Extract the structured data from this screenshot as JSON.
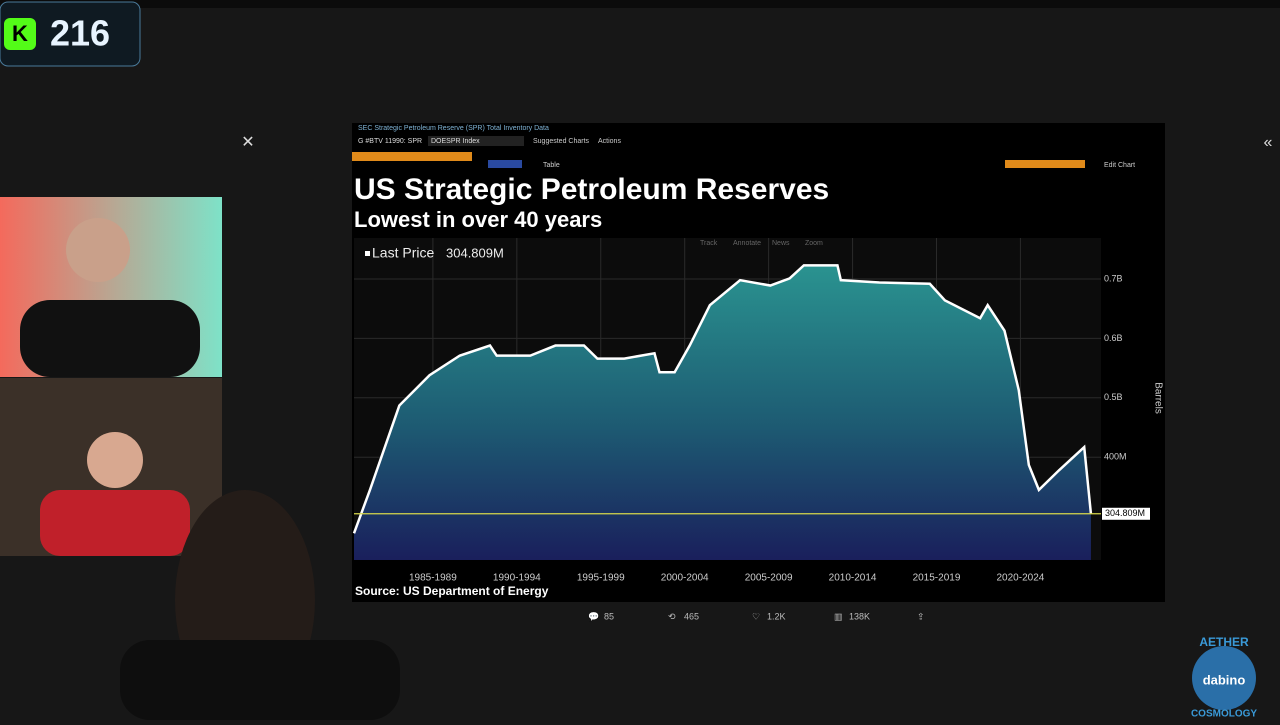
{
  "overlay": {
    "counter_badge": "K",
    "counter": "216",
    "watermark_top": "AETHER",
    "watermark_bottom": "COSMOLOGY",
    "watermark_logo": "dabino"
  },
  "terminal": {
    "header": "SEC Strategic Petroleum Reserve (SPR) Total Inventory Data",
    "ticker": "G #BTV 11990: SPR",
    "security": "DOESPR Index",
    "menu": [
      "Suggested Charts",
      "Actions"
    ],
    "table_button": "Table",
    "tools": [
      "Track",
      "Annotate",
      "News",
      "Zoom"
    ],
    "edit": "Edit Chart"
  },
  "chart_data": {
    "type": "area",
    "title": "US Strategic Petroleum Reserves",
    "subtitle": "Lowest in over 40 years",
    "y_label": "Barrels",
    "source": "Source: US Department of Energy",
    "x": [
      1982.8,
      1983.75,
      1985.5,
      1987.3,
      1989.1,
      1990.9,
      1991.3,
      1993.3,
      1994.8,
      1996.5,
      1997.3,
      1998.9,
      2000.7,
      2001.0,
      2001.9,
      2002.8,
      2004.0,
      2005.8,
      2007.6,
      2008.75,
      2009.6,
      2011.6,
      2011.8,
      2014.1,
      2017.1,
      2018.0,
      2020.1,
      2020.55,
      2021.55,
      2022.4,
      2023.0,
      2023.6,
      2024.8,
      2026.3,
      2026.7
    ],
    "series": [
      {
        "name": "Last Price",
        "color": "#ffffff",
        "values": [
          272000000,
          345000000,
          487000000,
          538000000,
          571000000,
          588000000,
          571000000,
          571000000,
          588000000,
          588000000,
          566000000,
          566000000,
          575000000,
          543000000,
          543000000,
          588000000,
          656000000,
          698000000,
          689000000,
          701000000,
          723000000,
          723000000,
          698000000,
          694000000,
          692000000,
          664000000,
          634000000,
          656000000,
          613000000,
          513000000,
          387000000,
          345000000,
          378000000,
          417000000,
          304809000
        ]
      }
    ],
    "last_price": {
      "value": 304809000,
      "label": "304.809M"
    },
    "xlim": [
      1982.8,
      2027.3
    ],
    "ylim": [
      227000000,
      769000000
    ],
    "xticks": [
      {
        "value": 1987.5,
        "label": "1985-1989"
      },
      {
        "value": 1992.5,
        "label": "1990-1994"
      },
      {
        "value": 1997.5,
        "label": "1995-1999"
      },
      {
        "value": 2002.5,
        "label": "2000-2004"
      },
      {
        "value": 2007.5,
        "label": "2005-2009"
      },
      {
        "value": 2012.5,
        "label": "2010-2014"
      },
      {
        "value": 2017.5,
        "label": "2015-2019"
      },
      {
        "value": 2022.5,
        "label": "2020-2024"
      }
    ],
    "yticks": [
      {
        "value": 700000000,
        "label": "0.7B"
      },
      {
        "value": 600000000,
        "label": "0.6B"
      },
      {
        "value": 500000000,
        "label": "0.5B"
      },
      {
        "value": 400000000,
        "label": "400M"
      }
    ],
    "grid": true
  },
  "post_stats": {
    "replies": "85",
    "reposts": "465",
    "likes": "1.2K",
    "views": "138K"
  }
}
